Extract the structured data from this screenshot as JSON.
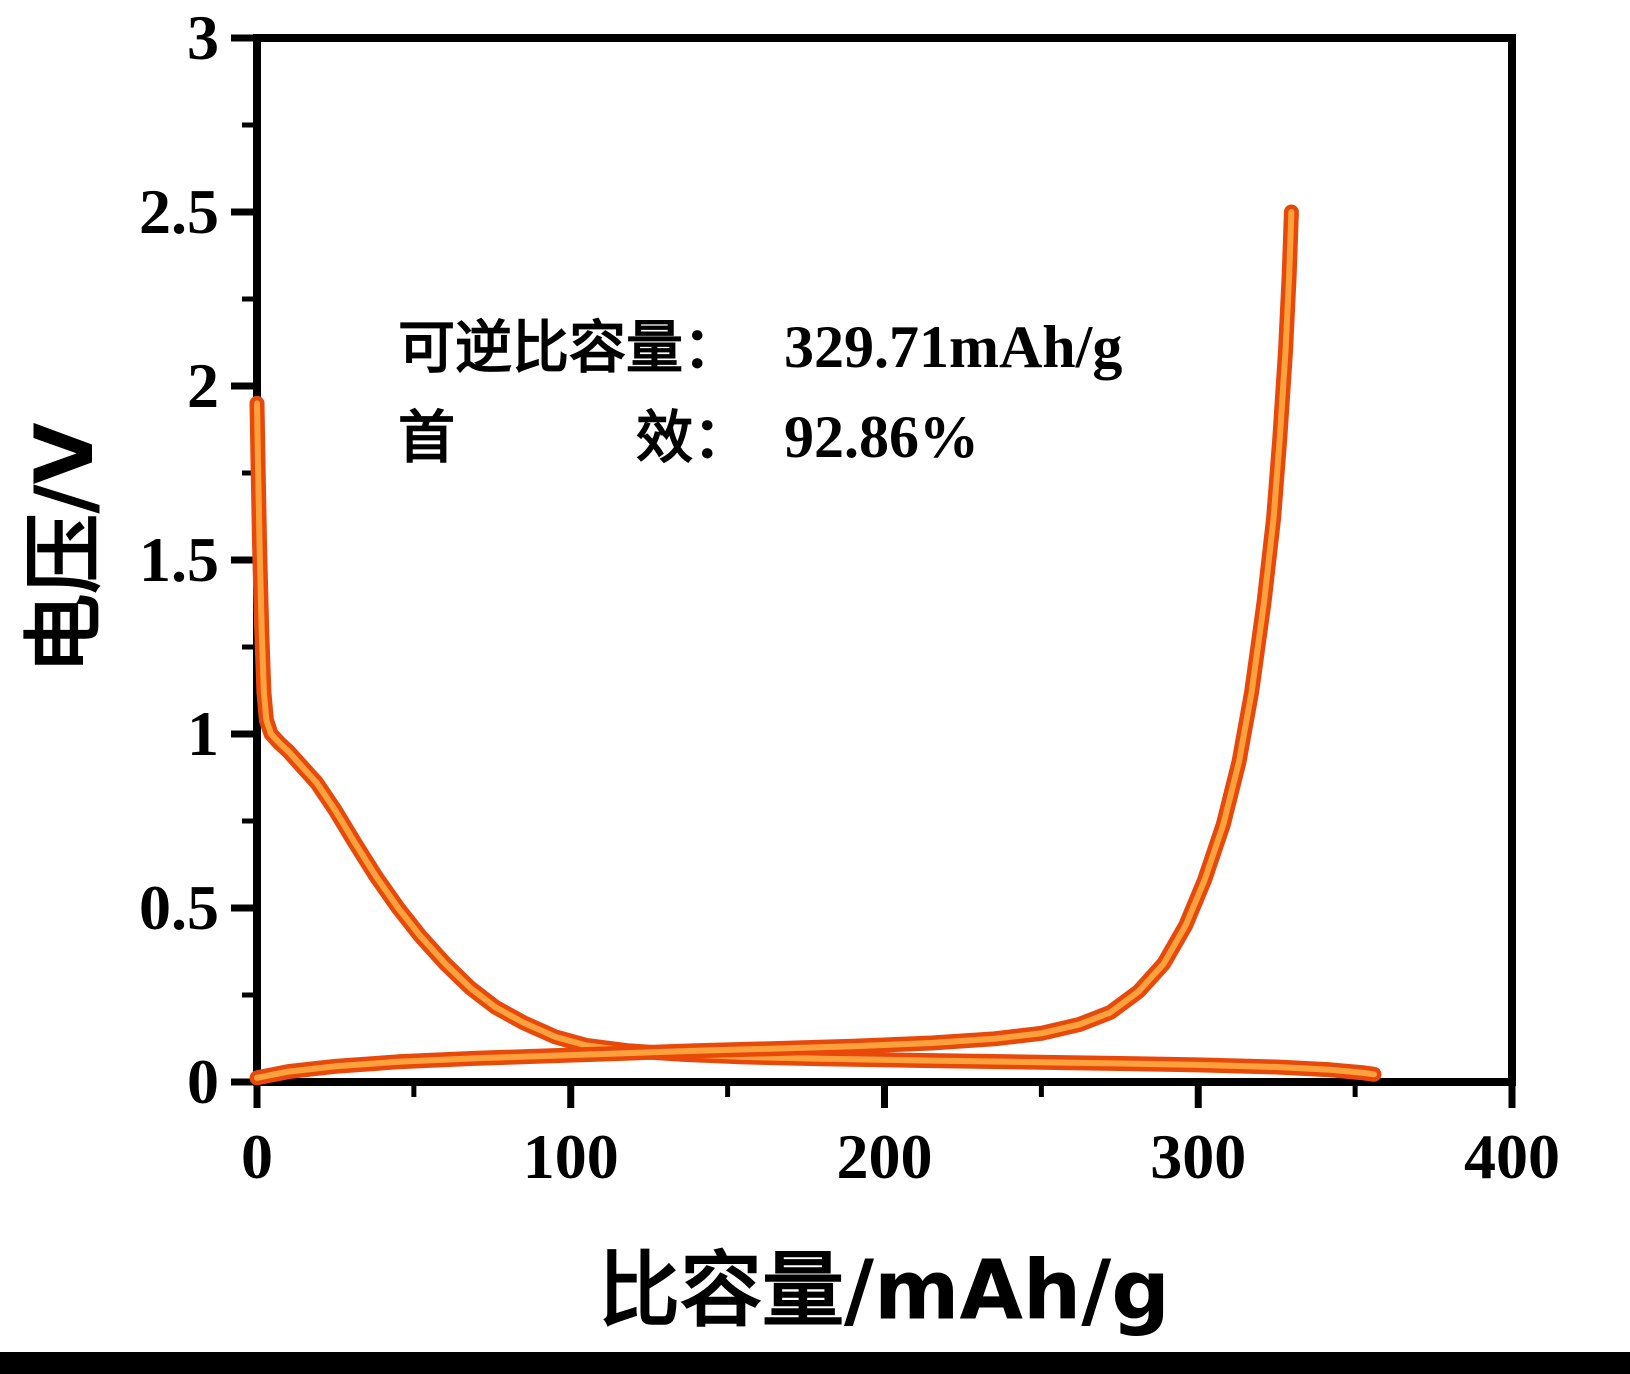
{
  "chart_data": {
    "type": "line",
    "title": "",
    "xlabel": "比容量/mAh/g",
    "ylabel": "电压/V",
    "xlim": [
      0,
      400
    ],
    "ylim": [
      0,
      3
    ],
    "x_major_ticks": [
      0,
      100,
      200,
      300,
      400
    ],
    "x_minor_ticks": [
      50,
      150,
      250,
      350
    ],
    "y_major_ticks": [
      0,
      0.5,
      1,
      1.5,
      2,
      2.5,
      3
    ],
    "y_minor_ticks": [
      0.25,
      0.75,
      1.25,
      1.75,
      2.25,
      2.75
    ],
    "grid": false,
    "legend": "none",
    "line_colors": {
      "outer": "#e8490b",
      "inner": "#ffa13c"
    },
    "axis_color": "#000000",
    "series": [
      {
        "name": "discharge-curve",
        "points": [
          [
            0,
            1.95
          ],
          [
            0.3,
            1.8
          ],
          [
            0.8,
            1.55
          ],
          [
            1.5,
            1.3
          ],
          [
            2.2,
            1.12
          ],
          [
            3,
            1.04
          ],
          [
            4.5,
            1.0
          ],
          [
            7,
            0.975
          ],
          [
            10,
            0.95
          ],
          [
            14,
            0.91
          ],
          [
            19,
            0.86
          ],
          [
            25,
            0.78
          ],
          [
            31,
            0.69
          ],
          [
            38,
            0.59
          ],
          [
            45,
            0.5
          ],
          [
            52,
            0.42
          ],
          [
            60,
            0.34
          ],
          [
            68,
            0.27
          ],
          [
            76,
            0.215
          ],
          [
            85,
            0.17
          ],
          [
            95,
            0.13
          ],
          [
            105,
            0.105
          ],
          [
            118,
            0.09
          ],
          [
            135,
            0.08
          ],
          [
            155,
            0.072
          ],
          [
            180,
            0.067
          ],
          [
            210,
            0.062
          ],
          [
            240,
            0.058
          ],
          [
            270,
            0.054
          ],
          [
            300,
            0.049
          ],
          [
            325,
            0.043
          ],
          [
            342,
            0.035
          ],
          [
            352,
            0.027
          ],
          [
            356,
            0.022
          ]
        ]
      },
      {
        "name": "charge-curve",
        "points": [
          [
            0,
            0.012
          ],
          [
            10,
            0.03
          ],
          [
            25,
            0.045
          ],
          [
            45,
            0.058
          ],
          [
            70,
            0.068
          ],
          [
            95,
            0.076
          ],
          [
            115,
            0.082
          ],
          [
            140,
            0.09
          ],
          [
            165,
            0.096
          ],
          [
            190,
            0.103
          ],
          [
            215,
            0.112
          ],
          [
            235,
            0.124
          ],
          [
            250,
            0.14
          ],
          [
            262,
            0.165
          ],
          [
            272,
            0.2
          ],
          [
            281,
            0.26
          ],
          [
            289,
            0.34
          ],
          [
            296,
            0.45
          ],
          [
            302,
            0.58
          ],
          [
            308,
            0.74
          ],
          [
            313,
            0.92
          ],
          [
            317,
            1.12
          ],
          [
            321,
            1.38
          ],
          [
            324,
            1.62
          ],
          [
            326,
            1.85
          ],
          [
            327.8,
            2.1
          ],
          [
            329,
            2.32
          ],
          [
            329.7,
            2.5
          ]
        ]
      }
    ],
    "annotation": {
      "line1": {
        "label": "可逆比容量：",
        "value": "329.71mAh/g"
      },
      "line2": {
        "label_left": "首",
        "label_right": "效：",
        "value": "92.86%"
      }
    }
  }
}
